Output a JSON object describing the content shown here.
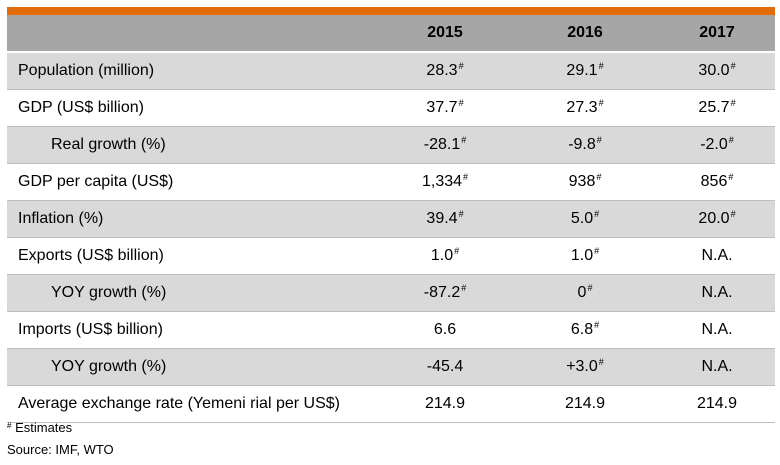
{
  "header": {
    "years": [
      "2015",
      "2016",
      "2017"
    ]
  },
  "rows": [
    {
      "label": "Population (million)",
      "indent": false,
      "shaded": true,
      "cells": [
        {
          "v": "28.3",
          "s": "#"
        },
        {
          "v": "29.1",
          "s": "#"
        },
        {
          "v": "30.0",
          "s": "#"
        }
      ]
    },
    {
      "label": "GDP (US$ billion)",
      "indent": false,
      "shaded": false,
      "cells": [
        {
          "v": "37.7",
          "s": "#"
        },
        {
          "v": "27.3",
          "s": "#"
        },
        {
          "v": "25.7",
          "s": "#"
        }
      ]
    },
    {
      "label": "Real growth (%)",
      "indent": true,
      "shaded": true,
      "cells": [
        {
          "v": "-28.1",
          "s": "#"
        },
        {
          "v": "-9.8",
          "s": "#"
        },
        {
          "v": "-2.0",
          "s": "#"
        }
      ]
    },
    {
      "label": "GDP per capita (US$)",
      "indent": false,
      "shaded": false,
      "cells": [
        {
          "v": "1,334",
          "s": "#"
        },
        {
          "v": "938",
          "s": "#"
        },
        {
          "v": "856",
          "s": "#"
        }
      ]
    },
    {
      "label": "Inflation (%)",
      "indent": false,
      "shaded": true,
      "cells": [
        {
          "v": "39.4",
          "s": "#"
        },
        {
          "v": "5.0",
          "s": "#"
        },
        {
          "v": "20.0",
          "s": "#"
        }
      ]
    },
    {
      "label": "Exports (US$ billion)",
      "indent": false,
      "shaded": false,
      "cells": [
        {
          "v": "1.0",
          "s": "#"
        },
        {
          "v": "1.0",
          "s": "#"
        },
        {
          "v": "N.A.",
          "s": ""
        }
      ]
    },
    {
      "label": "YOY growth (%)",
      "indent": true,
      "shaded": true,
      "cells": [
        {
          "v": "-87.2",
          "s": "#"
        },
        {
          "v": "0",
          "s": "#"
        },
        {
          "v": "N.A.",
          "s": ""
        }
      ]
    },
    {
      "label": "Imports (US$ billion)",
      "indent": false,
      "shaded": false,
      "cells": [
        {
          "v": "6.6",
          "s": ""
        },
        {
          "v": "6.8",
          "s": "#"
        },
        {
          "v": "N.A.",
          "s": ""
        }
      ]
    },
    {
      "label": "YOY growth (%)",
      "indent": true,
      "shaded": true,
      "cells": [
        {
          "v": "-45.4",
          "s": ""
        },
        {
          "v": "+3.0",
          "s": "#"
        },
        {
          "v": "N.A.",
          "s": ""
        }
      ]
    },
    {
      "label": "Average exchange rate (Yemeni rial per US$)",
      "indent": false,
      "shaded": false,
      "cells": [
        {
          "v": "214.9",
          "s": ""
        },
        {
          "v": "214.9",
          "s": ""
        },
        {
          "v": "214.9",
          "s": ""
        }
      ]
    }
  ],
  "footnote": {
    "mark": "#",
    "text": "Estimates"
  },
  "source": "Source: IMF, WTO",
  "colors": {
    "accent_bar": "#e36c0a",
    "header_bg": "#a6a6a6",
    "shaded_row_bg": "#d9d9d9"
  }
}
